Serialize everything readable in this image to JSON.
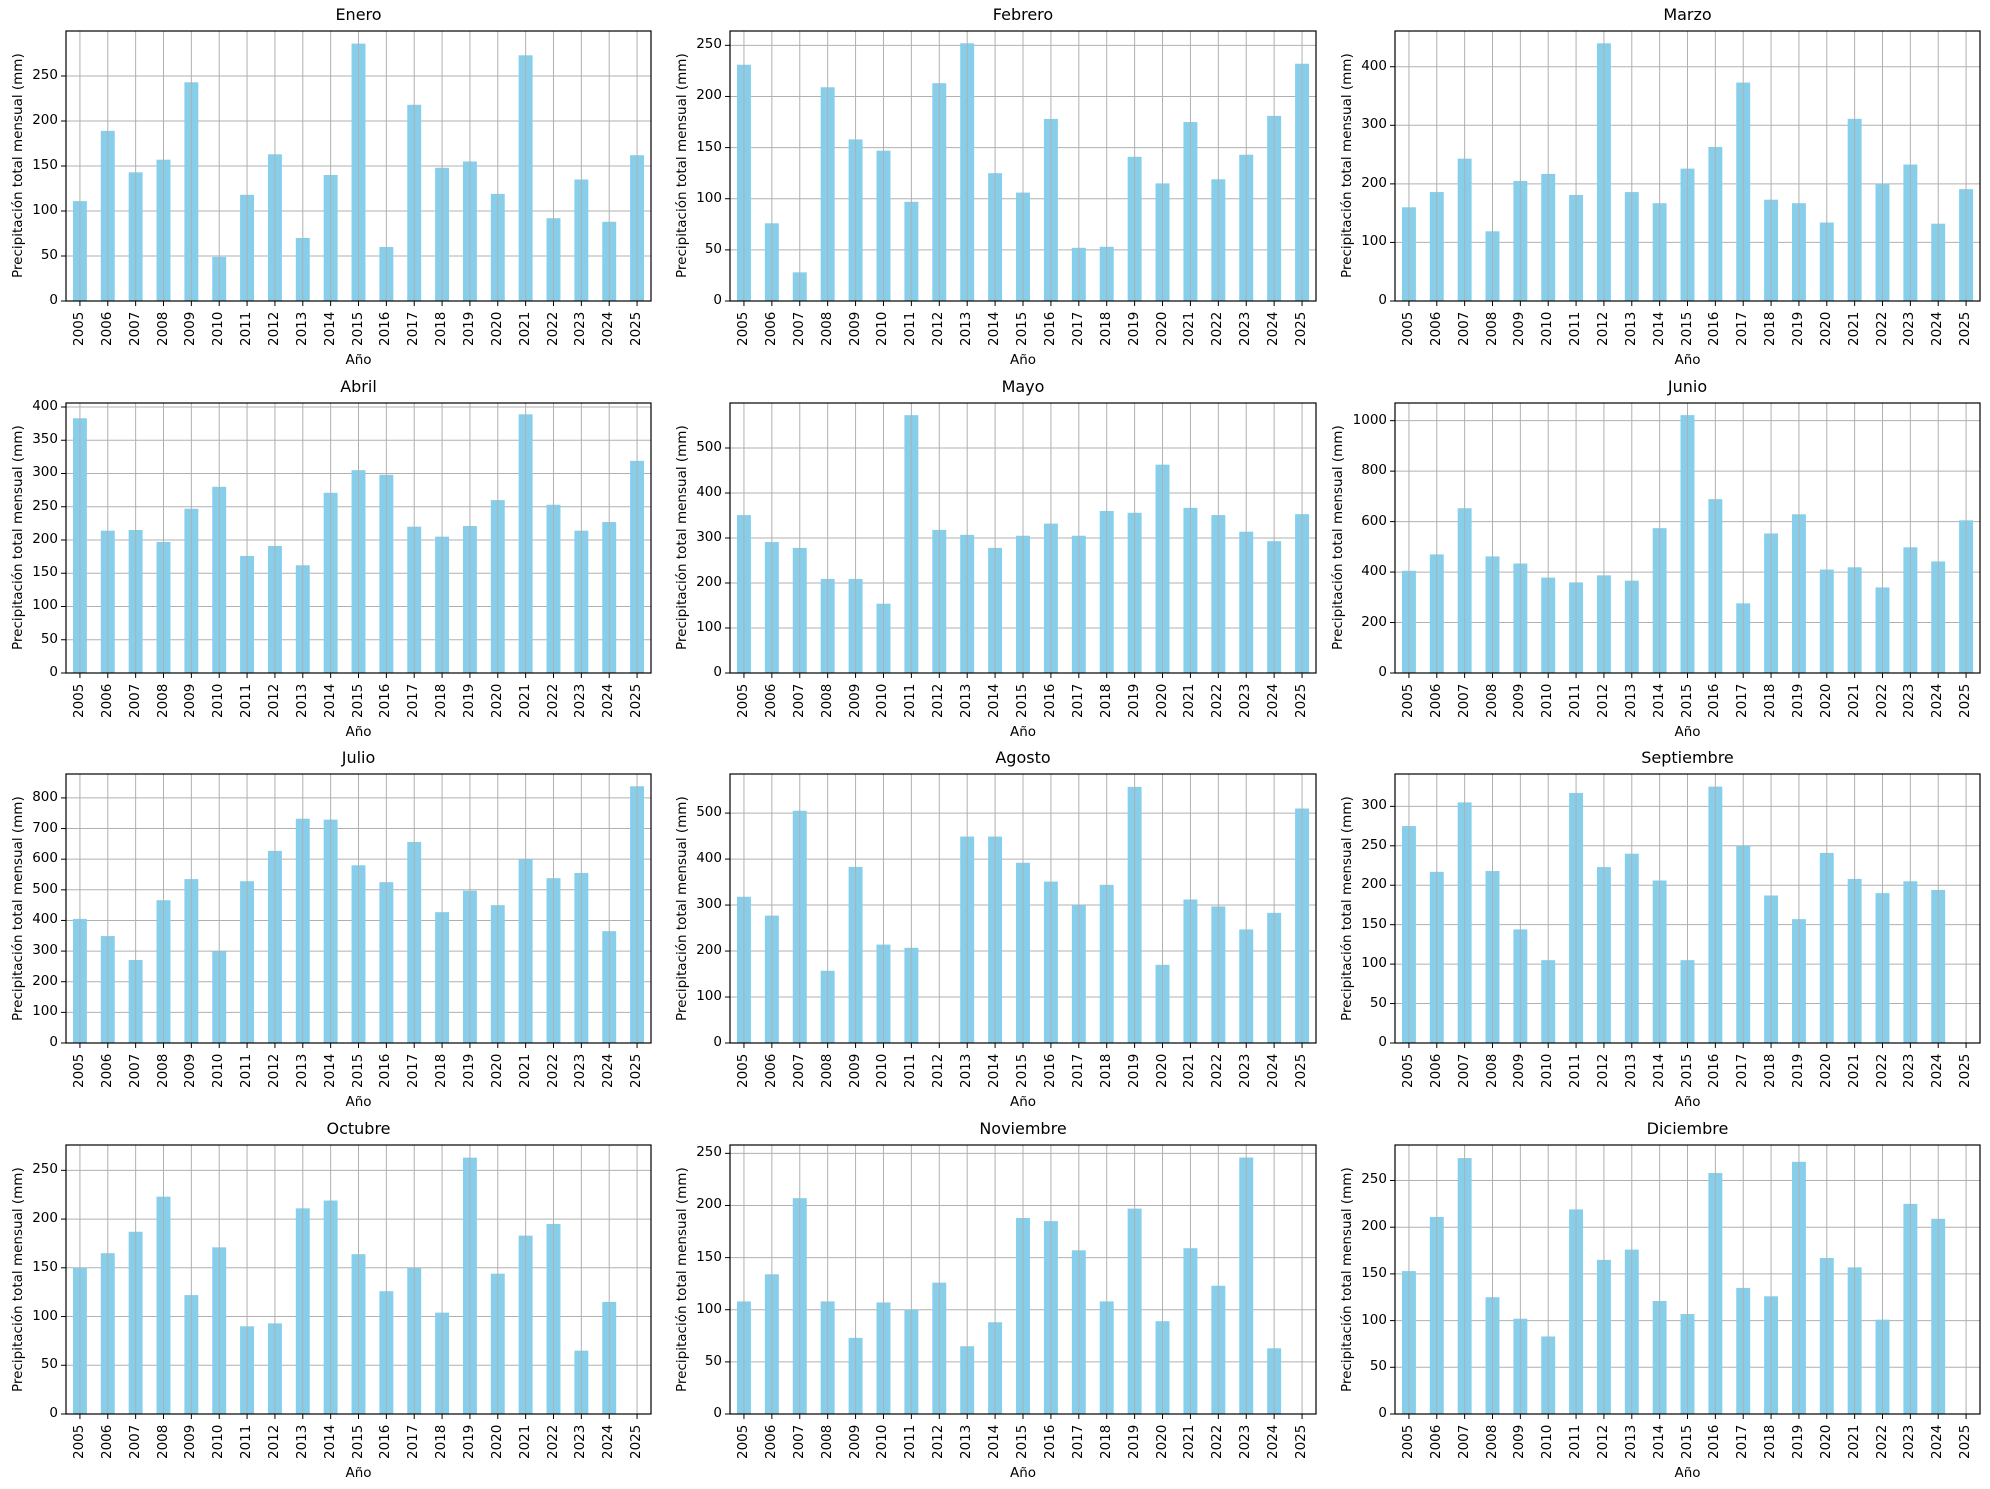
{
  "figure": {
    "ylabel": "Precipitación total mensual (mm)",
    "xlabel": "Año",
    "bar_color": "#87CEEB",
    "grid_color": "#b0b0b0"
  },
  "chart_data": [
    {
      "type": "bar",
      "title": "Enero",
      "xlabel": "Año",
      "ylabel": "Precipitación total mensual (mm)",
      "categories": [
        "2005",
        "2006",
        "2007",
        "2008",
        "2009",
        "2010",
        "2011",
        "2012",
        "2013",
        "2014",
        "2015",
        "2016",
        "2017",
        "2018",
        "2019",
        "2020",
        "2021",
        "2022",
        "2023",
        "2024",
        "2025"
      ],
      "values": [
        111,
        189,
        143,
        157,
        243,
        49,
        118,
        163,
        70,
        140,
        286,
        60,
        218,
        148,
        155,
        119,
        273,
        92,
        135,
        88,
        162
      ],
      "yticks": [
        0,
        50,
        100,
        150,
        200,
        250
      ],
      "ylim": [
        0,
        300
      ],
      "grid": true
    },
    {
      "type": "bar",
      "title": "Febrero",
      "xlabel": "Año",
      "ylabel": "Precipitación total mensual (mm)",
      "categories": [
        "2005",
        "2006",
        "2007",
        "2008",
        "2009",
        "2010",
        "2011",
        "2012",
        "2013",
        "2014",
        "2015",
        "2016",
        "2017",
        "2018",
        "2019",
        "2020",
        "2021",
        "2022",
        "2023",
        "2024",
        "2025"
      ],
      "values": [
        231,
        76,
        28,
        209,
        158,
        147,
        97,
        213,
        252,
        125,
        106,
        178,
        52,
        53,
        141,
        115,
        175,
        119,
        143,
        181,
        232
      ],
      "yticks": [
        0,
        50,
        100,
        150,
        200,
        250
      ],
      "ylim": [
        0,
        264
      ],
      "grid": true
    },
    {
      "type": "bar",
      "title": "Marzo",
      "xlabel": "Año",
      "ylabel": "Precipitación total mensual (mm)",
      "categories": [
        "2005",
        "2006",
        "2007",
        "2008",
        "2009",
        "2010",
        "2011",
        "2012",
        "2013",
        "2014",
        "2015",
        "2016",
        "2017",
        "2018",
        "2019",
        "2020",
        "2021",
        "2022",
        "2023",
        "2024",
        "2025"
      ],
      "values": [
        160,
        186,
        243,
        119,
        205,
        217,
        181,
        440,
        186,
        167,
        226,
        263,
        373,
        173,
        167,
        134,
        311,
        200,
        233,
        132,
        191
      ],
      "yticks": [
        0,
        100,
        200,
        300,
        400
      ],
      "ylim": [
        0,
        461
      ],
      "grid": true
    },
    {
      "type": "bar",
      "title": "Abril",
      "xlabel": "Año",
      "ylabel": "Precipitación total mensual (mm)",
      "categories": [
        "2005",
        "2006",
        "2007",
        "2008",
        "2009",
        "2010",
        "2011",
        "2012",
        "2013",
        "2014",
        "2015",
        "2016",
        "2017",
        "2018",
        "2019",
        "2020",
        "2021",
        "2022",
        "2023",
        "2024",
        "2025"
      ],
      "values": [
        383,
        214,
        215,
        197,
        247,
        280,
        176,
        191,
        162,
        271,
        305,
        298,
        220,
        205,
        221,
        260,
        389,
        253,
        214,
        227,
        319
      ],
      "yticks": [
        0,
        50,
        100,
        150,
        200,
        250,
        300,
        350,
        400
      ],
      "ylim": [
        0,
        406
      ],
      "grid": true
    },
    {
      "type": "bar",
      "title": "Mayo",
      "xlabel": "Año",
      "ylabel": "Precipitación total mensual (mm)",
      "categories": [
        "2005",
        "2006",
        "2007",
        "2008",
        "2009",
        "2010",
        "2011",
        "2012",
        "2013",
        "2014",
        "2015",
        "2016",
        "2017",
        "2018",
        "2019",
        "2020",
        "2021",
        "2022",
        "2023",
        "2024",
        "2025"
      ],
      "values": [
        351,
        291,
        278,
        209,
        209,
        154,
        573,
        318,
        307,
        278,
        305,
        332,
        305,
        360,
        356,
        463,
        367,
        351,
        314,
        293,
        353
      ],
      "yticks": [
        0,
        100,
        200,
        300,
        400,
        500
      ],
      "ylim": [
        0,
        600
      ],
      "grid": true
    },
    {
      "type": "bar",
      "title": "Junio",
      "xlabel": "Año",
      "ylabel": "Precipitación total mensual (mm)",
      "categories": [
        "2005",
        "2006",
        "2007",
        "2008",
        "2009",
        "2010",
        "2011",
        "2012",
        "2013",
        "2014",
        "2015",
        "2016",
        "2017",
        "2018",
        "2019",
        "2020",
        "2021",
        "2022",
        "2023",
        "2024",
        "2025"
      ],
      "values": [
        405,
        470,
        653,
        462,
        434,
        378,
        359,
        387,
        366,
        574,
        1022,
        689,
        276,
        553,
        629,
        410,
        419,
        339,
        498,
        442,
        605
      ],
      "yticks": [
        0,
        200,
        400,
        600,
        800,
        1000
      ],
      "ylim": [
        0,
        1070
      ],
      "grid": true
    },
    {
      "type": "bar",
      "title": "Julio",
      "xlabel": "Año",
      "ylabel": "Precipitación total mensual (mm)",
      "categories": [
        "2005",
        "2006",
        "2007",
        "2008",
        "2009",
        "2010",
        "2011",
        "2012",
        "2013",
        "2014",
        "2015",
        "2016",
        "2017",
        "2018",
        "2019",
        "2020",
        "2021",
        "2022",
        "2023",
        "2024",
        "2025"
      ],
      "values": [
        405,
        349,
        271,
        466,
        535,
        299,
        528,
        627,
        732,
        729,
        580,
        525,
        656,
        427,
        497,
        450,
        599,
        538,
        555,
        365,
        838
      ],
      "yticks": [
        0,
        100,
        200,
        300,
        400,
        500,
        600,
        700,
        800
      ],
      "ylim": [
        0,
        878
      ],
      "grid": true
    },
    {
      "type": "bar",
      "title": "Agosto",
      "xlabel": "Año",
      "ylabel": "Precipitación total mensual (mm)",
      "categories": [
        "2005",
        "2006",
        "2007",
        "2008",
        "2009",
        "2010",
        "2011",
        "2012",
        "2013",
        "2014",
        "2015",
        "2016",
        "2017",
        "2018",
        "2019",
        "2020",
        "2021",
        "2022",
        "2023",
        "2024",
        "2025"
      ],
      "values": [
        318,
        277,
        505,
        157,
        383,
        214,
        207,
        0,
        449,
        449,
        392,
        351,
        300,
        344,
        557,
        170,
        312,
        297,
        247,
        283,
        510
      ],
      "yticks": [
        0,
        100,
        200,
        300,
        400,
        500
      ],
      "ylim": [
        0,
        585
      ],
      "grid": true
    },
    {
      "type": "bar",
      "title": "Septiembre",
      "xlabel": "Año",
      "ylabel": "Precipitación total mensual (mm)",
      "categories": [
        "2005",
        "2006",
        "2007",
        "2008",
        "2009",
        "2010",
        "2011",
        "2012",
        "2013",
        "2014",
        "2015",
        "2016",
        "2017",
        "2018",
        "2019",
        "2020",
        "2021",
        "2022",
        "2023",
        "2024",
        "2025"
      ],
      "values": [
        275,
        217,
        305,
        218,
        144,
        105,
        317,
        223,
        240,
        206,
        105,
        325,
        250,
        187,
        157,
        241,
        208,
        190,
        205,
        194,
        0
      ],
      "yticks": [
        0,
        50,
        100,
        150,
        200,
        250,
        300
      ],
      "ylim": [
        0,
        341
      ],
      "grid": true
    },
    {
      "type": "bar",
      "title": "Octubre",
      "xlabel": "Año",
      "ylabel": "Precipitación total mensual (mm)",
      "categories": [
        "2005",
        "2006",
        "2007",
        "2008",
        "2009",
        "2010",
        "2011",
        "2012",
        "2013",
        "2014",
        "2015",
        "2016",
        "2017",
        "2018",
        "2019",
        "2020",
        "2021",
        "2022",
        "2023",
        "2024",
        "2025"
      ],
      "values": [
        150,
        165,
        187,
        223,
        122,
        171,
        90,
        93,
        211,
        219,
        164,
        126,
        150,
        104,
        263,
        144,
        183,
        195,
        65,
        115,
        0
      ],
      "yticks": [
        0,
        50,
        100,
        150,
        200,
        250
      ],
      "ylim": [
        0,
        276
      ],
      "grid": true
    },
    {
      "type": "bar",
      "title": "Noviembre",
      "xlabel": "Año",
      "ylabel": "Precipitación total mensual (mm)",
      "categories": [
        "2005",
        "2006",
        "2007",
        "2008",
        "2009",
        "2010",
        "2011",
        "2012",
        "2013",
        "2014",
        "2015",
        "2016",
        "2017",
        "2018",
        "2019",
        "2020",
        "2021",
        "2022",
        "2023",
        "2024",
        "2025"
      ],
      "values": [
        108,
        134,
        207,
        108,
        73,
        107,
        100,
        126,
        65,
        88,
        188,
        185,
        157,
        108,
        197,
        89,
        159,
        123,
        246,
        63,
        0
      ],
      "yticks": [
        0,
        50,
        100,
        150,
        200,
        250
      ],
      "ylim": [
        0,
        258
      ],
      "grid": true
    },
    {
      "type": "bar",
      "title": "Diciembre",
      "xlabel": "Año",
      "ylabel": "Precipitación total mensual (mm)",
      "categories": [
        "2005",
        "2006",
        "2007",
        "2008",
        "2009",
        "2010",
        "2011",
        "2012",
        "2013",
        "2014",
        "2015",
        "2016",
        "2017",
        "2018",
        "2019",
        "2020",
        "2021",
        "2022",
        "2023",
        "2024",
        "2025"
      ],
      "values": [
        153,
        211,
        274,
        125,
        102,
        83,
        219,
        165,
        176,
        121,
        107,
        258,
        135,
        126,
        270,
        167,
        157,
        101,
        225,
        209,
        0
      ],
      "yticks": [
        0,
        50,
        100,
        150,
        200,
        250
      ],
      "ylim": [
        0,
        288
      ],
      "grid": true
    }
  ]
}
